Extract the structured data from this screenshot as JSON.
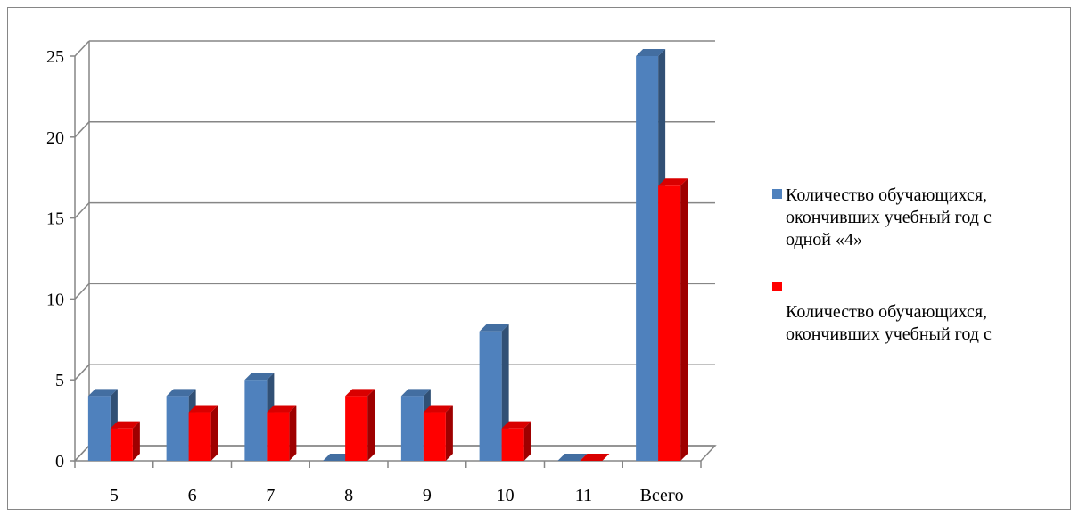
{
  "chart_data": {
    "type": "bar",
    "categories": [
      "5",
      "6",
      "7",
      "8",
      "9",
      "10",
      "11",
      "Всего"
    ],
    "series": [
      {
        "name": "Количество обучающихся,\nокончивших учебный год с\nодной «4»",
        "values": [
          4,
          4,
          5,
          0,
          4,
          8,
          0,
          25
        ],
        "color": "#4F81BD"
      },
      {
        "name": "Количество обучающихся,\nокончивших учебный год с",
        "values": [
          2,
          3,
          3,
          4,
          3,
          2,
          0,
          17
        ],
        "color": "#FF0000"
      }
    ],
    "ylim": [
      0,
      25
    ],
    "yticks": [
      0,
      5,
      10,
      15,
      20,
      25
    ],
    "grid": true,
    "legend": "right",
    "style": "3d-clustered-column"
  }
}
